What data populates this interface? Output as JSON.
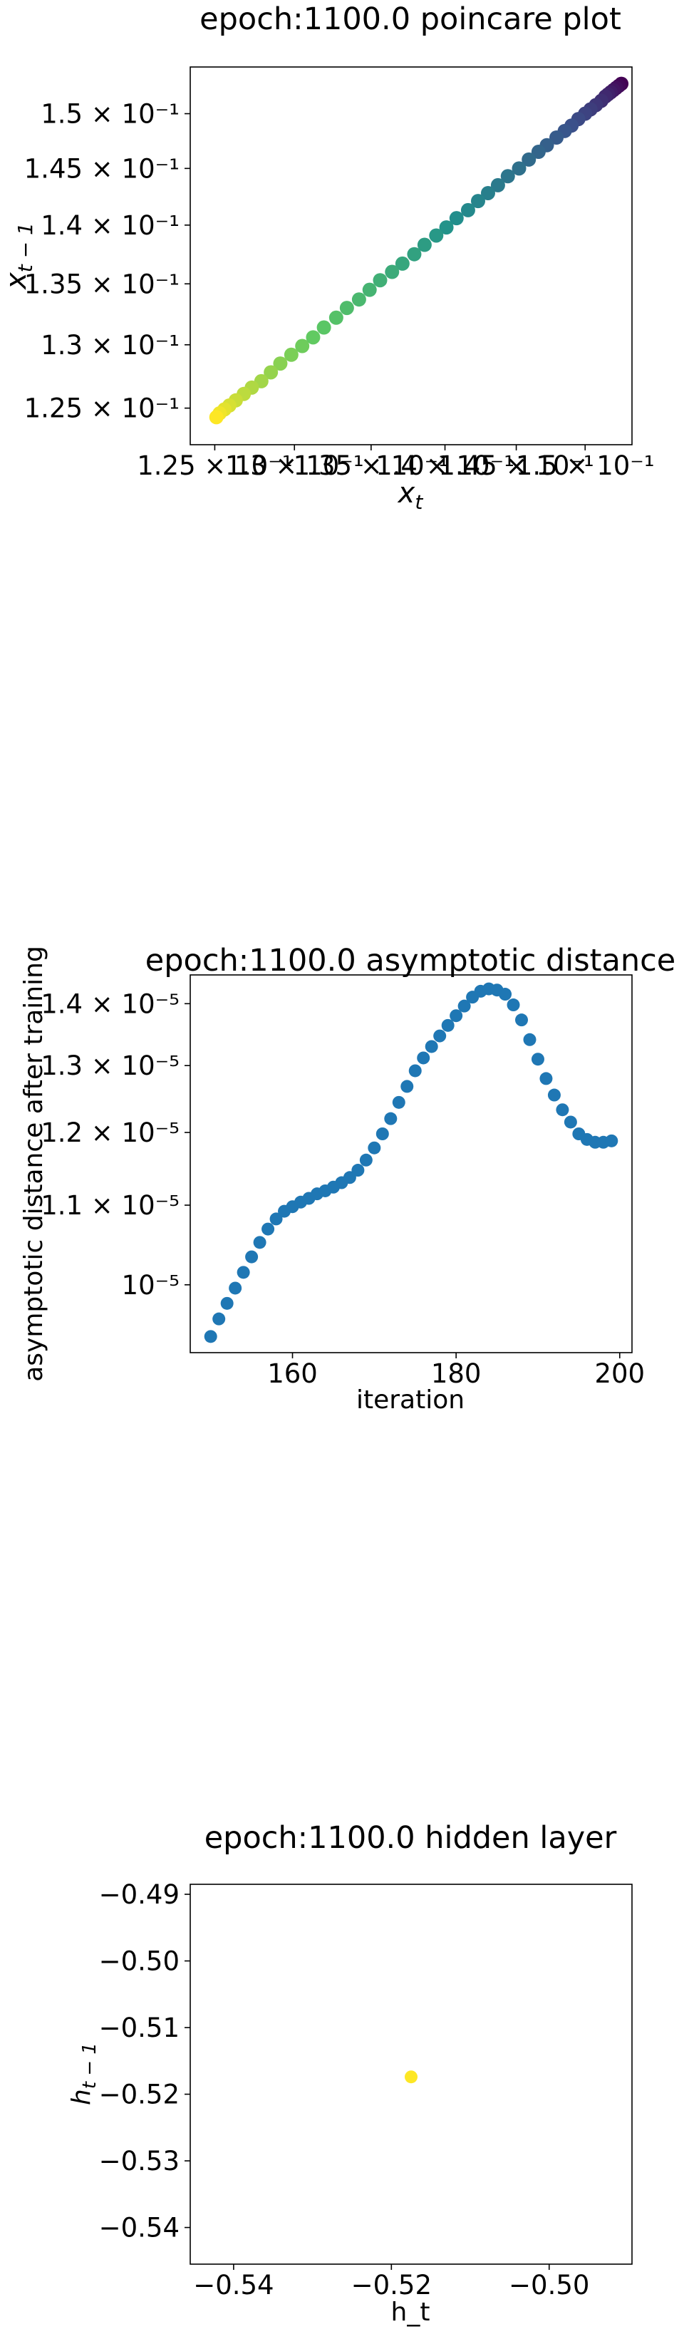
{
  "chart_data": [
    {
      "type": "scatter",
      "title": "epoch:1100.0 poincare plot",
      "xlabel": "x_t",
      "ylabel": "x_{t-1}",
      "x_scale": "log",
      "y_scale": "log",
      "xlim": [
        0.1235,
        0.1535
      ],
      "ylim": [
        0.1222,
        0.1544
      ],
      "x_ticks": [
        0.125,
        0.13,
        0.135,
        0.14,
        0.145,
        0.15
      ],
      "x_tick_labels": [
        "1.25 × 10⁻¹",
        "1.3 × 10⁻¹",
        "1.35 × 10⁻¹",
        "1.4 × 10⁻¹",
        "1.45 × 10⁻¹",
        "1.5 × 10⁻¹"
      ],
      "y_ticks": [
        0.125,
        0.13,
        0.135,
        0.14,
        0.145,
        0.15
      ],
      "y_tick_labels": [
        "1.25 × 10⁻¹",
        "1.3 × 10⁻¹",
        "1.35 × 10⁻¹",
        "1.4 × 10⁻¹",
        "1.45 × 10⁻¹",
        "1.5 × 10⁻¹"
      ],
      "colormap": "viridis",
      "color_order": "first point dark purple (top-right), last point yellow (bottom-left)",
      "marker_color": "#440154",
      "grid": false,
      "series": [
        {
          "x": [
            0.1527,
            0.1525,
            0.1523,
            0.1521,
            0.1519,
            0.1517,
            0.1515,
            0.1512,
            0.1508,
            0.1504,
            0.15,
            0.1495,
            0.149,
            0.1485,
            0.1479,
            0.1472,
            0.1466,
            0.1459,
            0.1452,
            0.1444,
            0.1437,
            0.143,
            0.1423,
            0.1416,
            0.1408,
            0.1401,
            0.1394,
            0.1386,
            0.1379,
            0.1371,
            0.1364,
            0.1356,
            0.1349,
            0.1342,
            0.1334,
            0.1327,
            0.1319,
            0.1312,
            0.1305,
            0.1298,
            0.1291,
            0.1285,
            0.1279,
            0.1273,
            0.1268,
            0.1263,
            0.1259,
            0.1256,
            0.1253,
            0.1251
          ],
          "y": [
            0.1528,
            0.1526,
            0.1524,
            0.1522,
            0.152,
            0.1518,
            0.1516,
            0.1512,
            0.1508,
            0.1504,
            0.15,
            0.1495,
            0.1489,
            0.1484,
            0.1478,
            0.1471,
            0.1465,
            0.1458,
            0.145,
            0.1443,
            0.1435,
            0.1428,
            0.1421,
            0.1413,
            0.1406,
            0.1398,
            0.1391,
            0.1383,
            0.1375,
            0.1367,
            0.136,
            0.1353,
            0.1345,
            0.1337,
            0.133,
            0.1322,
            0.1314,
            0.1306,
            0.1299,
            0.1292,
            0.1285,
            0.1278,
            0.1271,
            0.1266,
            0.1261,
            0.1256,
            0.1252,
            0.1249,
            0.1246,
            0.1243
          ]
        }
      ]
    },
    {
      "type": "scatter",
      "title": "epoch:1100.0 asymptotic distance",
      "xlabel": "iteration",
      "ylabel": "asymptotic distance after training",
      "x_scale": "linear",
      "y_scale": "log",
      "xlim": [
        147.5,
        201.5
      ],
      "ylim": [
        9.22e-06,
        1.449e-05
      ],
      "x_ticks": [
        160,
        180,
        200
      ],
      "x_tick_labels": [
        "160",
        "180",
        "200"
      ],
      "y_ticks": [
        1e-05,
        1.1e-05,
        1.2e-05,
        1.3e-05,
        1.4e-05
      ],
      "y_tick_labels": [
        "10⁻⁵",
        "1.1 × 10⁻⁵",
        "1.2 × 10⁻⁵",
        "1.3 × 10⁻⁵",
        "1.4 × 10⁻⁵"
      ],
      "marker_color": "#1f77b4",
      "grid": false,
      "series": [
        {
          "x": [
            150,
            151,
            152,
            153,
            154,
            155,
            156,
            157,
            158,
            159,
            160,
            161,
            162,
            163,
            164,
            165,
            166,
            167,
            168,
            169,
            170,
            171,
            172,
            173,
            174,
            175,
            176,
            177,
            178,
            179,
            180,
            181,
            182,
            183,
            184,
            185,
            186,
            187,
            188,
            189,
            190,
            191,
            192,
            193,
            194,
            195,
            196,
            197,
            198,
            199
          ],
          "y": [
            9.4e-06,
            9.6e-06,
            9.78e-06,
            9.96e-06,
            1.015e-05,
            1.034e-05,
            1.052e-05,
            1.069e-05,
            1.082e-05,
            1.092e-05,
            1.098e-05,
            1.104e-05,
            1.109e-05,
            1.115e-05,
            1.119e-05,
            1.124e-05,
            1.13e-05,
            1.137e-05,
            1.147e-05,
            1.161e-05,
            1.178e-05,
            1.198e-05,
            1.22e-05,
            1.244e-05,
            1.268e-05,
            1.292e-05,
            1.312e-05,
            1.33e-05,
            1.347e-05,
            1.364e-05,
            1.38e-05,
            1.396e-05,
            1.411e-05,
            1.421e-05,
            1.425e-05,
            1.423e-05,
            1.416e-05,
            1.398e-05,
            1.373e-05,
            1.341e-05,
            1.31e-05,
            1.28e-05,
            1.255e-05,
            1.233e-05,
            1.215e-05,
            1.198e-05,
            1.19e-05,
            1.186e-05,
            1.186e-05,
            1.188e-05
          ]
        }
      ]
    },
    {
      "type": "scatter",
      "title": "epoch:1100.0 hidden layer",
      "xlabel": "h_t",
      "ylabel": "h_{t-1}",
      "x_scale": "linear",
      "y_scale": "linear",
      "xlim": [
        -0.5455,
        -0.4895
      ],
      "ylim": [
        -0.5455,
        -0.4885
      ],
      "x_ticks": [
        -0.54,
        -0.52,
        -0.5
      ],
      "x_tick_labels": [
        "−0.54",
        "−0.52",
        "−0.50"
      ],
      "y_ticks": [
        -0.54,
        -0.53,
        -0.52,
        -0.51,
        -0.5,
        -0.49
      ],
      "y_tick_labels": [
        "−0.54",
        "−0.53",
        "−0.52",
        "−0.51",
        "−0.50",
        "−0.49"
      ],
      "marker_color": "#fde725",
      "grid": false,
      "series": [
        {
          "x": [
            -0.5175
          ],
          "y": [
            -0.5174
          ]
        }
      ]
    }
  ]
}
